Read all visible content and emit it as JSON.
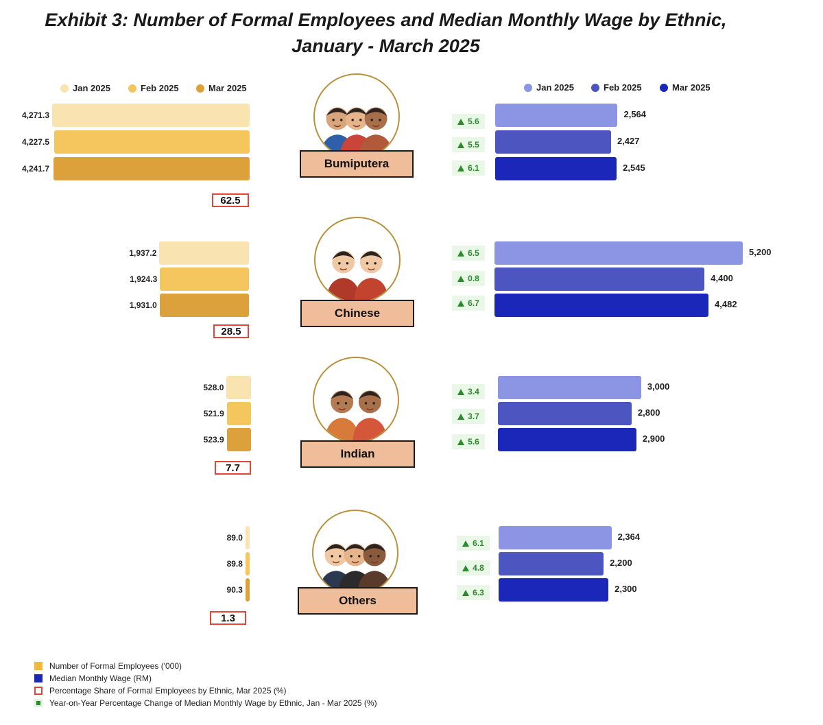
{
  "title": {
    "line1": "Exhibit 3: Number of Formal Employees and Median Monthly Wage by Ethnic,",
    "line2": "January - March 2025"
  },
  "legend_left": [
    {
      "label": "Jan 2025",
      "color": "#f9e3b1"
    },
    {
      "label": "Feb 2025",
      "color": "#f5c55e"
    },
    {
      "label": "Mar 2025",
      "color": "#dca13a"
    }
  ],
  "legend_right": [
    {
      "label": "Jan 2025",
      "color": "#8c94e4"
    },
    {
      "label": "Feb 2025",
      "color": "#4c55c0"
    },
    {
      "label": "Mar 2025",
      "color": "#1a27b8"
    }
  ],
  "groups": [
    {
      "name": "Bumiputera",
      "employees": [
        "4,271.3",
        "4,227.5",
        "4,241.7"
      ],
      "share": "62.5",
      "wages": [
        "2,564",
        "2,427",
        "2,545"
      ],
      "yoy": [
        "5.6",
        "5.5",
        "6.1"
      ],
      "avatar": "bumiputera-people-icon"
    },
    {
      "name": "Chinese",
      "employees": [
        "1,937.2",
        "1,924.3",
        "1,931.0"
      ],
      "share": "28.5",
      "wages": [
        "5,200",
        "4,400",
        "4,482"
      ],
      "yoy": [
        "6.5",
        "0.8",
        "6.7"
      ],
      "avatar": "chinese-people-icon"
    },
    {
      "name": "Indian",
      "employees": [
        "528.0",
        "521.9",
        "523.9"
      ],
      "share": "7.7",
      "wages": [
        "3,000",
        "2,800",
        "2,900"
      ],
      "yoy": [
        "3.4",
        "3.7",
        "5.6"
      ],
      "avatar": "indian-people-icon"
    },
    {
      "name": "Others",
      "employees": [
        "89.0",
        "89.8",
        "90.3"
      ],
      "share": "1.3",
      "wages": [
        "2,364",
        "2,200",
        "2,300"
      ],
      "yoy": [
        "6.1",
        "4.8",
        "6.3"
      ],
      "avatar": "others-people-icon"
    }
  ],
  "chart_data": {
    "type": "bar",
    "categories": [
      "Bumiputera",
      "Chinese",
      "Indian",
      "Others"
    ],
    "employees_series": [
      {
        "name": "Jan 2025",
        "values": [
          4271.3,
          1937.2,
          528.0,
          89.0
        ]
      },
      {
        "name": "Feb 2025",
        "values": [
          4227.5,
          1924.3,
          521.9,
          89.8
        ]
      },
      {
        "name": "Mar 2025",
        "values": [
          4241.7,
          1931.0,
          523.9,
          90.3
        ]
      }
    ],
    "wage_series": [
      {
        "name": "Jan 2025",
        "values": [
          2564,
          5200,
          3000,
          2364
        ]
      },
      {
        "name": "Feb 2025",
        "values": [
          2427,
          4400,
          2800,
          2200
        ]
      },
      {
        "name": "Mar 2025",
        "values": [
          2545,
          4482,
          2900,
          2300
        ]
      }
    ],
    "share_mar_2025": [
      62.5,
      28.5,
      7.7,
      1.3
    ],
    "yoy_change": [
      [
        5.6,
        5.5,
        6.1
      ],
      [
        6.5,
        0.8,
        6.7
      ],
      [
        3.4,
        3.7,
        5.6
      ],
      [
        6.1,
        4.8,
        6.3
      ]
    ]
  },
  "footnotes": [
    {
      "label": "Number of Formal Employees ('000)",
      "kind": "filled",
      "color": "#f0b93c"
    },
    {
      "label": "Median Monthly Wage (RM)",
      "kind": "filled",
      "color": "#1a27b8"
    },
    {
      "label": "Percentage Share of Formal Employees by Ethnic, Mar 2025 (%)",
      "kind": "outline",
      "color": "#e0473a"
    },
    {
      "label": "Year-on-Year Percentage Change of Median Monthly Wage by Ethnic, Jan - Mar 2025 (%)",
      "kind": "yoy",
      "color": "#2c8a2c"
    }
  ]
}
